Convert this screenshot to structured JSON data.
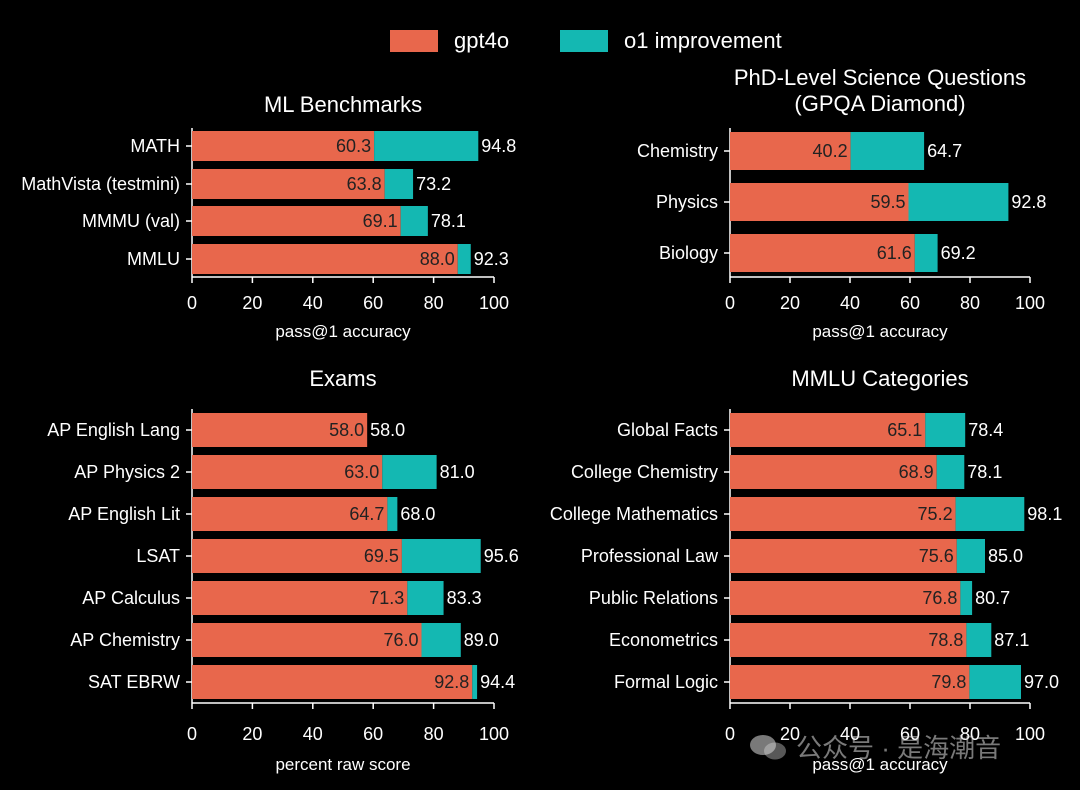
{
  "colors": {
    "gpt4o": "#E8674C",
    "improvement": "#14B8B2",
    "background": "#000000",
    "axis": "#FFFFFF"
  },
  "legend": {
    "gpt4o_label": "gpt4o",
    "improvement_label": "o1 improvement"
  },
  "watermark": "公众号 · 是海潮音",
  "chart_data": [
    {
      "type": "bar",
      "orientation": "horizontal",
      "stacked": true,
      "title": "ML Benchmarks",
      "xlabel": "pass@1 accuracy",
      "xlim": [
        0,
        100
      ],
      "xticks": [
        "0",
        "20",
        "40",
        "60",
        "80",
        "100"
      ],
      "categories": [
        "MATH",
        "MathVista (testmini)",
        "MMMU (val)",
        "MMLU"
      ],
      "series": [
        {
          "name": "gpt4o",
          "values": [
            60.3,
            63.8,
            69.1,
            88.0
          ]
        },
        {
          "name": "o1 improvement",
          "totals": [
            94.8,
            73.2,
            78.1,
            92.3
          ]
        }
      ],
      "labels_gpt4o": [
        "60.3",
        "63.8",
        "69.1",
        "88.0"
      ],
      "labels_total": [
        "94.8",
        "73.2",
        "78.1",
        "92.3"
      ]
    },
    {
      "type": "bar",
      "orientation": "horizontal",
      "stacked": true,
      "title": "PhD-Level Science Questions",
      "subtitle": "(GPQA Diamond)",
      "xlabel": "pass@1 accuracy",
      "xlim": [
        0,
        100
      ],
      "xticks": [
        "0",
        "20",
        "40",
        "60",
        "80",
        "100"
      ],
      "categories": [
        "Chemistry",
        "Physics",
        "Biology"
      ],
      "series": [
        {
          "name": "gpt4o",
          "values": [
            40.2,
            59.5,
            61.6
          ]
        },
        {
          "name": "o1 improvement",
          "totals": [
            64.7,
            92.8,
            69.2
          ]
        }
      ],
      "labels_gpt4o": [
        "40.2",
        "59.5",
        "61.6"
      ],
      "labels_total": [
        "64.7",
        "92.8",
        "69.2"
      ]
    },
    {
      "type": "bar",
      "orientation": "horizontal",
      "stacked": true,
      "title": "Exams",
      "xlabel": "percent raw score",
      "xlim": [
        0,
        100
      ],
      "xticks": [
        "0",
        "20",
        "40",
        "60",
        "80",
        "100"
      ],
      "categories": [
        "AP English Lang",
        "AP Physics 2",
        "AP English Lit",
        "LSAT",
        "AP Calculus",
        "AP Chemistry",
        "SAT EBRW"
      ],
      "series": [
        {
          "name": "gpt4o",
          "values": [
            58.0,
            63.0,
            64.7,
            69.5,
            71.3,
            76.0,
            92.8
          ]
        },
        {
          "name": "o1 improvement",
          "totals": [
            58.0,
            81.0,
            68.0,
            95.6,
            83.3,
            89.0,
            94.4
          ]
        }
      ],
      "labels_gpt4o": [
        "58.0",
        "63.0",
        "64.7",
        "69.5",
        "71.3",
        "76.0",
        "92.8"
      ],
      "labels_total": [
        "58.0",
        "81.0",
        "68.0",
        "95.6",
        "83.3",
        "89.0",
        "94.4"
      ]
    },
    {
      "type": "bar",
      "orientation": "horizontal",
      "stacked": true,
      "title": "MMLU Categories",
      "xlabel": "pass@1 accuracy",
      "xlim": [
        0,
        100
      ],
      "xticks": [
        "0",
        "20",
        "40",
        "60",
        "80",
        "100"
      ],
      "categories": [
        "Global Facts",
        "College Chemistry",
        "College Mathematics",
        "Professional Law",
        "Public Relations",
        "Econometrics",
        "Formal Logic"
      ],
      "series": [
        {
          "name": "gpt4o",
          "values": [
            65.1,
            68.9,
            75.2,
            75.6,
            76.8,
            78.8,
            79.8
          ]
        },
        {
          "name": "o1 improvement",
          "totals": [
            78.4,
            78.1,
            98.1,
            85.0,
            80.7,
            87.1,
            97.0
          ]
        }
      ],
      "labels_gpt4o": [
        "65.1",
        "68.9",
        "75.2",
        "75.6",
        "76.8",
        "78.8",
        "79.8"
      ],
      "labels_total": [
        "78.4",
        "78.1",
        "98.1",
        "85.0",
        "80.7",
        "87.1",
        "97.0"
      ]
    }
  ]
}
